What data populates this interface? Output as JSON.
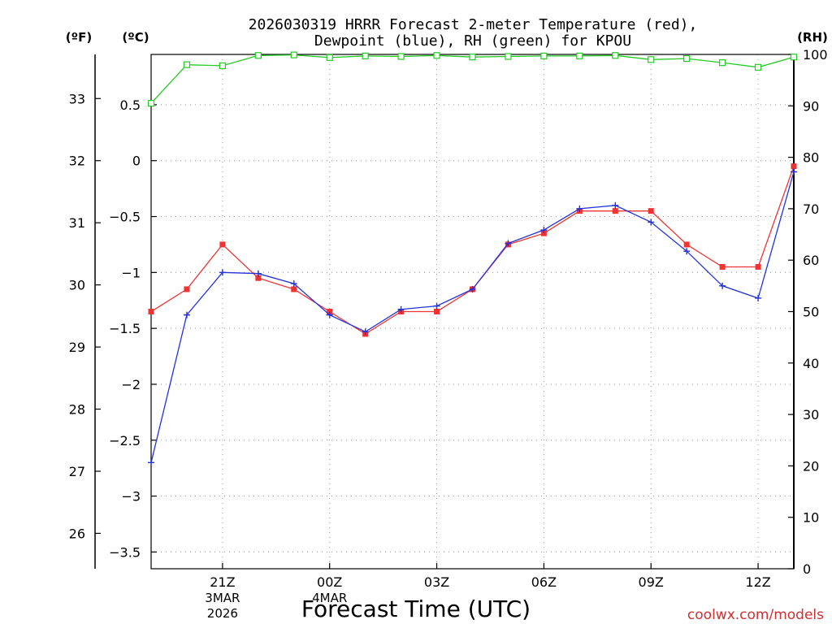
{
  "chart_data": {
    "type": "line",
    "title_line1": "2026030319 HRRR Forecast 2-meter Temperature (red),",
    "title_line2": "Dewpoint (blue), RH (green) for KPOU",
    "xlabel": "Forecast Time (UTC)",
    "unit_f": "(ºF)",
    "unit_c": "(ºC)",
    "unit_rh": "(RH)",
    "watermark": "coolwx.com/models",
    "x_hours": [
      0,
      1,
      2,
      3,
      4,
      5,
      6,
      7,
      8,
      9,
      10,
      11,
      12,
      13,
      14,
      15,
      16,
      17,
      18
    ],
    "x_ticks": [
      {
        "x": 2,
        "label": "21Z",
        "sub1": "3MAR",
        "sub2": "2026"
      },
      {
        "x": 5,
        "label": "00Z",
        "sub1": "4MAR",
        "sub2": ""
      },
      {
        "x": 8,
        "label": "03Z",
        "sub1": "",
        "sub2": ""
      },
      {
        "x": 11,
        "label": "06Z",
        "sub1": "",
        "sub2": ""
      },
      {
        "x": 14,
        "label": "09Z",
        "sub1": "",
        "sub2": ""
      },
      {
        "x": 17,
        "label": "12Z",
        "sub1": "",
        "sub2": ""
      }
    ],
    "xlim": [
      0,
      18
    ],
    "celsius_lim": [
      -3.65,
      0.95
    ],
    "celsius_ticks": [
      "0.5",
      "0",
      "−0.5",
      "−1",
      "−1.5",
      "−2",
      "−2.5",
      "−3",
      "−3.5"
    ],
    "fahrenheit_ticks": [
      "33",
      "32",
      "31",
      "30",
      "29",
      "28",
      "27",
      "26"
    ],
    "rh_lim": [
      0,
      100
    ],
    "rh_ticks": [
      "0",
      "10",
      "20",
      "30",
      "40",
      "50",
      "60",
      "70",
      "80",
      "90",
      "100"
    ],
    "series": [
      {
        "name": "Temperature",
        "unit": "C",
        "color": "#ee3333",
        "marker": "filled-square",
        "values": [
          -1.35,
          -1.15,
          -0.75,
          -1.05,
          -1.15,
          -1.35,
          -1.55,
          -1.35,
          -1.35,
          -1.15,
          -0.75,
          -0.65,
          -0.45,
          -0.45,
          -0.45,
          -0.75,
          -0.95,
          -0.95,
          -0.05
        ]
      },
      {
        "name": "Dewpoint",
        "unit": "C",
        "color": "#2233dd",
        "marker": "plus",
        "values": [
          -2.7,
          -1.38,
          -1.0,
          -1.01,
          -1.1,
          -1.38,
          -1.53,
          -1.33,
          -1.3,
          -1.15,
          -0.74,
          -0.62,
          -0.43,
          -0.4,
          -0.55,
          -0.81,
          -1.12,
          -1.23,
          -0.1
        ]
      },
      {
        "name": "RH",
        "unit": "%",
        "color": "#22cc22",
        "marker": "open-square",
        "values": [
          90.5,
          98,
          97.8,
          99.8,
          99.9,
          99.4,
          99.7,
          99.6,
          99.8,
          99.5,
          99.6,
          99.7,
          99.7,
          99.8,
          99.0,
          99.2,
          98.4,
          97.5,
          99.5
        ]
      }
    ]
  }
}
